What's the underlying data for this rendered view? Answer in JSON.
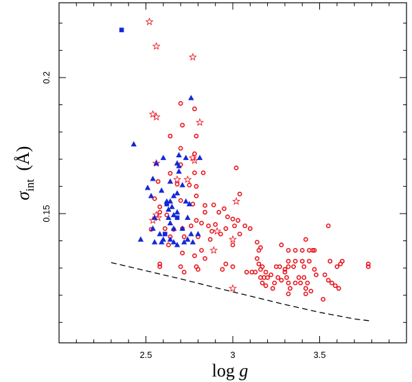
{
  "chart_data": {
    "type": "scatter",
    "title": "",
    "xlabel": "log g",
    "ylabel_symbol": "σ",
    "ylabel_subscript": "int",
    "ylabel_unit": "(Å)",
    "xlim": [
      2.0,
      4.0
    ],
    "ylim": [
      0.1025,
      0.2275
    ],
    "xticks": [
      2.5,
      3.0,
      3.5
    ],
    "xtick_labels": [
      "2.5",
      "3",
      "3.5"
    ],
    "yticks": [
      0.15,
      0.2
    ],
    "ytick_labels": [
      "0.15",
      "0.2"
    ],
    "colors": {
      "red": "#e8141c",
      "blue": "#1428d8"
    },
    "series": [
      {
        "name": "red circles",
        "marker": "circle-open",
        "color": "#e8141c",
        "points": [
          [
            2.7,
            0.1905
          ],
          [
            2.78,
            0.1885
          ],
          [
            2.71,
            0.1825
          ],
          [
            2.64,
            0.1785
          ],
          [
            2.79,
            0.1785
          ],
          [
            2.7,
            0.174
          ],
          [
            2.78,
            0.172
          ],
          [
            2.7,
            0.168
          ],
          [
            2.78,
            0.165
          ],
          [
            2.64,
            0.1648
          ],
          [
            2.83,
            0.165
          ],
          [
            3.02,
            0.1668
          ],
          [
            2.68,
            0.1608
          ],
          [
            2.75,
            0.1605
          ],
          [
            2.79,
            0.16
          ],
          [
            2.57,
            0.1618
          ],
          [
            3.04,
            0.1572
          ],
          [
            2.79,
            0.1565
          ],
          [
            2.7,
            0.1548
          ],
          [
            2.77,
            0.1535
          ],
          [
            2.84,
            0.153
          ],
          [
            2.89,
            0.1532
          ],
          [
            2.55,
            0.1555
          ],
          [
            2.58,
            0.1525
          ],
          [
            2.58,
            0.1505
          ],
          [
            2.62,
            0.1495
          ],
          [
            2.84,
            0.1505
          ],
          [
            2.92,
            0.1505
          ],
          [
            2.95,
            0.1518
          ],
          [
            2.97,
            0.1488
          ],
          [
            3.0,
            0.148
          ],
          [
            3.03,
            0.1475
          ],
          [
            2.79,
            0.1475
          ],
          [
            2.82,
            0.1465
          ],
          [
            2.86,
            0.1455
          ],
          [
            2.9,
            0.146
          ],
          [
            2.76,
            0.1455
          ],
          [
            2.53,
            0.1442
          ],
          [
            2.61,
            0.1445
          ],
          [
            2.71,
            0.1445
          ],
          [
            2.66,
            0.1442
          ],
          [
            2.88,
            0.1435
          ],
          [
            2.93,
            0.1425
          ],
          [
            2.96,
            0.1445
          ],
          [
            3.01,
            0.1455
          ],
          [
            3.07,
            0.1455
          ],
          [
            3.1,
            0.1445
          ],
          [
            3.04,
            0.1425
          ],
          [
            2.64,
            0.1415
          ],
          [
            2.72,
            0.1415
          ],
          [
            2.8,
            0.1415
          ],
          [
            2.87,
            0.1405
          ],
          [
            3.0,
            0.1385
          ],
          [
            3.14,
            0.1395
          ],
          [
            3.16,
            0.1375
          ],
          [
            3.15,
            0.1365
          ],
          [
            3.28,
            0.1385
          ],
          [
            3.32,
            0.1365
          ],
          [
            3.36,
            0.1365
          ],
          [
            3.4,
            0.1365
          ],
          [
            3.44,
            0.1365
          ],
          [
            3.46,
            0.1365
          ],
          [
            3.47,
            0.1365
          ],
          [
            3.42,
            0.1405
          ],
          [
            3.55,
            0.1455
          ],
          [
            2.71,
            0.1355
          ],
          [
            2.78,
            0.1345
          ],
          [
            2.63,
            0.1385
          ],
          [
            2.82,
            0.1365
          ],
          [
            2.84,
            0.1335
          ],
          [
            2.58,
            0.1315
          ],
          [
            2.58,
            0.1305
          ],
          [
            2.7,
            0.1305
          ],
          [
            2.79,
            0.1305
          ],
          [
            2.8,
            0.1295
          ],
          [
            2.72,
            0.1285
          ],
          [
            2.94,
            0.1295
          ],
          [
            2.96,
            0.1315
          ],
          [
            3.0,
            0.1305
          ],
          [
            3.14,
            0.1335
          ],
          [
            3.15,
            0.1315
          ],
          [
            3.16,
            0.1295
          ],
          [
            3.19,
            0.1285
          ],
          [
            3.17,
            0.1305
          ],
          [
            3.2,
            0.1265
          ],
          [
            3.22,
            0.1275
          ],
          [
            3.25,
            0.1305
          ],
          [
            3.27,
            0.1305
          ],
          [
            3.3,
            0.1295
          ],
          [
            3.32,
            0.1325
          ],
          [
            3.32,
            0.1305
          ],
          [
            3.35,
            0.1305
          ],
          [
            3.36,
            0.1325
          ],
          [
            3.4,
            0.1325
          ],
          [
            3.41,
            0.1305
          ],
          [
            3.44,
            0.1325
          ],
          [
            3.47,
            0.1295
          ],
          [
            3.56,
            0.1325
          ],
          [
            3.6,
            0.1305
          ],
          [
            3.63,
            0.1325
          ],
          [
            3.62,
            0.1315
          ],
          [
            3.08,
            0.1285
          ],
          [
            3.11,
            0.1285
          ],
          [
            3.13,
            0.1285
          ],
          [
            3.16,
            0.1265
          ],
          [
            3.17,
            0.1245
          ],
          [
            3.19,
            0.1235
          ],
          [
            3.23,
            0.1225
          ],
          [
            3.24,
            0.1245
          ],
          [
            3.26,
            0.1265
          ],
          [
            3.28,
            0.1255
          ],
          [
            3.3,
            0.1285
          ],
          [
            3.31,
            0.1265
          ],
          [
            3.32,
            0.1245
          ],
          [
            3.33,
            0.1225
          ],
          [
            3.36,
            0.1245
          ],
          [
            3.38,
            0.1265
          ],
          [
            3.39,
            0.1245
          ],
          [
            3.41,
            0.1265
          ],
          [
            3.42,
            0.1225
          ],
          [
            3.43,
            0.1245
          ],
          [
            3.45,
            0.1215
          ],
          [
            3.48,
            0.1275
          ],
          [
            3.53,
            0.1275
          ],
          [
            3.55,
            0.1255
          ],
          [
            3.57,
            0.1245
          ],
          [
            3.59,
            0.1235
          ],
          [
            3.61,
            0.1225
          ],
          [
            3.52,
            0.1185
          ],
          [
            3.32,
            0.1205
          ],
          [
            3.42,
            0.1205
          ],
          [
            3.18,
            0.1265
          ],
          [
            3.78,
            0.1315
          ],
          [
            3.78,
            0.1305
          ]
        ]
      },
      {
        "name": "red stars",
        "marker": "star-open",
        "color": "#e8141c",
        "points": [
          [
            2.52,
            0.2205
          ],
          [
            2.56,
            0.2115
          ],
          [
            2.77,
            0.2075
          ],
          [
            2.54,
            0.1865
          ],
          [
            2.56,
            0.1855
          ],
          [
            2.81,
            0.1835
          ],
          [
            2.77,
            0.1705
          ],
          [
            2.78,
            0.1695
          ],
          [
            2.56,
            0.1685
          ],
          [
            2.68,
            0.1625
          ],
          [
            2.74,
            0.1625
          ],
          [
            3.02,
            0.1545
          ],
          [
            2.56,
            0.1495
          ],
          [
            2.57,
            0.1485
          ],
          [
            2.54,
            0.1475
          ],
          [
            2.91,
            0.1435
          ],
          [
            3.0,
            0.1405
          ],
          [
            2.89,
            0.1365
          ],
          [
            3.0,
            0.1225
          ]
        ]
      },
      {
        "name": "blue triangles",
        "marker": "triangle-filled",
        "color": "#1428d8",
        "points": [
          [
            2.76,
            0.1925
          ],
          [
            2.43,
            0.1755
          ],
          [
            2.69,
            0.1715
          ],
          [
            2.6,
            0.1705
          ],
          [
            2.73,
            0.1705
          ],
          [
            2.81,
            0.1705
          ],
          [
            2.56,
            0.1685
          ],
          [
            2.68,
            0.1685
          ],
          [
            2.69,
            0.1675
          ],
          [
            2.69,
            0.1655
          ],
          [
            2.54,
            0.1628
          ],
          [
            2.64,
            0.1618
          ],
          [
            2.71,
            0.1605
          ],
          [
            2.51,
            0.1595
          ],
          [
            2.59,
            0.1585
          ],
          [
            2.66,
            0.1565
          ],
          [
            2.68,
            0.1575
          ],
          [
            2.53,
            0.1565
          ],
          [
            2.62,
            0.1545
          ],
          [
            2.64,
            0.1545
          ],
          [
            2.73,
            0.1545
          ],
          [
            2.75,
            0.1535
          ],
          [
            2.65,
            0.1525
          ],
          [
            2.63,
            0.1515
          ],
          [
            2.68,
            0.1505
          ],
          [
            2.55,
            0.1485
          ],
          [
            2.63,
            0.1485
          ],
          [
            2.66,
            0.1495
          ],
          [
            2.74,
            0.1485
          ],
          [
            2.64,
            0.1465
          ],
          [
            2.54,
            0.1445
          ],
          [
            2.58,
            0.1425
          ],
          [
            2.66,
            0.1445
          ],
          [
            2.71,
            0.1445
          ],
          [
            2.76,
            0.1425
          ],
          [
            2.8,
            0.1425
          ],
          [
            2.47,
            0.1405
          ],
          [
            2.6,
            0.1405
          ],
          [
            2.55,
            0.1395
          ],
          [
            2.64,
            0.1405
          ],
          [
            2.59,
            0.1395
          ],
          [
            2.66,
            0.1395
          ],
          [
            2.68,
            0.1385
          ],
          [
            2.72,
            0.1395
          ],
          [
            2.74,
            0.1405
          ],
          [
            2.77,
            0.1395
          ]
        ]
      },
      {
        "name": "blue squares",
        "marker": "square-filled",
        "color": "#1428d8",
        "points": [
          [
            2.36,
            0.2175
          ],
          [
            2.62,
            0.1535
          ],
          [
            2.68,
            0.1485
          ],
          [
            2.61,
            0.1425
          ]
        ]
      }
    ],
    "reference_curve": {
      "name": "dashed lower envelope",
      "style": "dashed",
      "color": "#000000",
      "points": [
        [
          2.3,
          0.132
        ],
        [
          2.5,
          0.129
        ],
        [
          2.7,
          0.126
        ],
        [
          2.9,
          0.1228
        ],
        [
          3.1,
          0.1197
        ],
        [
          3.3,
          0.1166
        ],
        [
          3.5,
          0.1137
        ],
        [
          3.7,
          0.1113
        ],
        [
          3.8,
          0.1105
        ]
      ]
    }
  }
}
